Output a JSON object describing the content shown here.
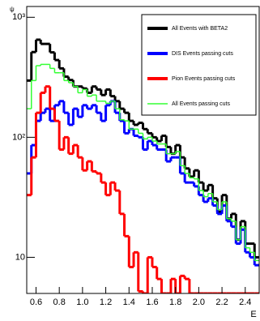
{
  "chart_data": {
    "type": "step-histogram",
    "x_label": "E",
    "y_label": "ψ",
    "log_y": true,
    "legend": "top-right",
    "bins": [
      0.52,
      0.56,
      0.6,
      0.64,
      0.68,
      0.72,
      0.76,
      0.8,
      0.84,
      0.88,
      0.92,
      0.96,
      1.0,
      1.04,
      1.08,
      1.12,
      1.16,
      1.2,
      1.24,
      1.28,
      1.32,
      1.36,
      1.4,
      1.44,
      1.48,
      1.52,
      1.56,
      1.6,
      1.64,
      1.68,
      1.72,
      1.76,
      1.8,
      1.84,
      1.88,
      1.92,
      1.96,
      2.0,
      2.04,
      2.08,
      2.12,
      2.16,
      2.2,
      2.24,
      2.28,
      2.32,
      2.36,
      2.4,
      2.44,
      2.48,
      2.52
    ],
    "series": [
      {
        "name": "All Events with BETA2",
        "color": "#000000",
        "values": [
          297,
          513,
          650,
          600,
          600,
          510,
          440,
          375,
          320,
          300,
          265,
          265,
          255,
          235,
          265,
          250,
          225,
          250,
          220,
          200,
          173,
          160,
          137,
          127,
          132,
          117,
          108,
          100,
          93,
          103,
          83,
          73,
          86,
          68,
          55,
          47,
          53,
          42,
          36,
          40,
          31,
          24,
          33,
          21,
          23,
          14,
          20,
          13,
          13,
          10
        ]
      },
      {
        "name": "DIS Events passing cuts",
        "color": "#0000ff",
        "values": [
          50,
          86,
          137,
          160,
          173,
          137,
          185,
          200,
          160,
          127,
          173,
          148,
          185,
          173,
          185,
          160,
          137,
          185,
          200,
          160,
          137,
          108,
          117,
          103,
          100,
          79,
          93,
          86,
          79,
          79,
          63,
          68,
          68,
          50,
          42,
          42,
          39,
          33,
          29,
          31,
          27,
          23,
          27,
          20,
          18,
          13,
          17,
          11,
          10,
          8.6
        ]
      },
      {
        "name": "Pion  Events passing cuts",
        "color": "#ff0000",
        "values": [
          33,
          68,
          160,
          235,
          265,
          173,
          137,
          79,
          100,
          73,
          86,
          68,
          53,
          63,
          52,
          50,
          42,
          33,
          42,
          36,
          23,
          15,
          8.3,
          11,
          5.2,
          5,
          10,
          8.3,
          6.6,
          5,
          5,
          6.6,
          5,
          7,
          6.6,
          5,
          5,
          5,
          5,
          5,
          5,
          5,
          5,
          5,
          5,
          5,
          5,
          5,
          5,
          5
        ]
      },
      {
        "name": "All  Events passing cuts",
        "color": "#33ff33",
        "values": [
          173,
          297,
          395,
          405,
          405,
          375,
          345,
          345,
          297,
          285,
          265,
          235,
          250,
          220,
          225,
          200,
          200,
          192,
          200,
          173,
          140,
          137,
          117,
          117,
          108,
          97,
          100,
          93,
          88,
          88,
          73,
          73,
          76,
          58,
          50,
          46,
          45,
          36,
          32,
          34,
          29,
          25,
          29,
          21,
          20,
          14,
          18,
          12,
          11,
          9.4
        ]
      }
    ],
    "xlim": [
      0.52,
      2.52
    ],
    "ylim": [
      5,
      1230
    ],
    "xticks": [
      0.6,
      0.8,
      {
        "value": 1,
        "label": "1.0"
      },
      1.2,
      1.4,
      1.6,
      1.8,
      {
        "value": 2,
        "label": "2.0"
      },
      2.2,
      2.4
    ],
    "yticks": [
      {
        "value": 10,
        "label": "10"
      },
      {
        "value": 100,
        "label": "10²"
      },
      {
        "value": 1000,
        "label": "10³"
      }
    ]
  }
}
